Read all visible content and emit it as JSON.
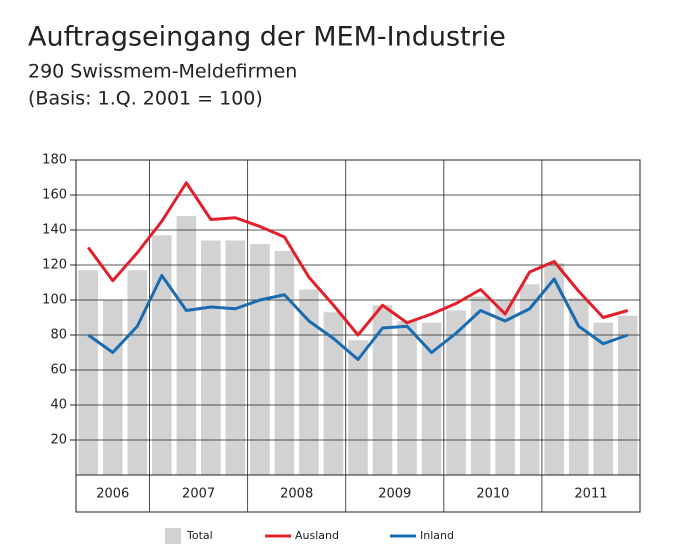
{
  "chart_data": {
    "type": "bar-line",
    "title": "Auftragseingang der MEM-Industrie",
    "subtitle": "290 Swissmem-Meldefirmen",
    "note": "(Basis: 1.Q. 2001 = 100)",
    "categories": [
      "2006",
      "2006",
      "2006",
      "2007",
      "2007",
      "2007",
      "2007",
      "2008",
      "2008",
      "2008",
      "2008",
      "2009",
      "2009",
      "2009",
      "2009",
      "2010",
      "2010",
      "2010",
      "2010",
      "2011",
      "2011",
      "2011",
      "2011"
    ],
    "ylim": [
      0,
      180
    ],
    "yticks": [
      20,
      40,
      60,
      80,
      100,
      120,
      140,
      160,
      180
    ],
    "grid": true,
    "series": [
      {
        "name": "Total",
        "kind": "bar",
        "color": "#d2d2d2",
        "values": [
          117,
          100,
          117,
          137,
          148,
          134,
          134,
          132,
          128,
          106,
          93,
          77,
          97,
          88,
          87,
          94,
          102,
          100,
          109,
          121,
          101,
          87,
          91
        ]
      },
      {
        "name": "Ausland",
        "kind": "line",
        "color": "#e0202a",
        "values": [
          130,
          111,
          127,
          145,
          167,
          146,
          147,
          142,
          136,
          113,
          97,
          80,
          97,
          87,
          92,
          98,
          106,
          92,
          116,
          122,
          105,
          90,
          94
        ]
      },
      {
        "name": "Inland",
        "kind": "line",
        "color": "#1a6bb0",
        "values": [
          80,
          70,
          85,
          114,
          94,
          96,
          95,
          100,
          103,
          88,
          78,
          66,
          84,
          85,
          70,
          81,
          94,
          88,
          95,
          112,
          85,
          75,
          80
        ]
      }
    ]
  }
}
